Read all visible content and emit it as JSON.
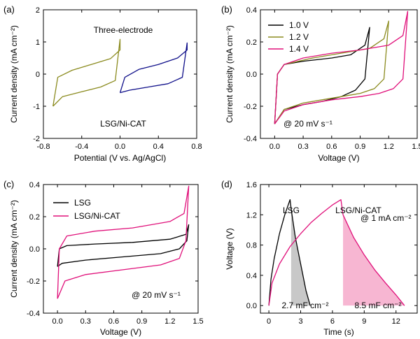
{
  "chart_data": [
    {
      "panel": "(a)",
      "type": "line",
      "xlabel": "Potential (V vs. Ag/AgCl)",
      "ylabel": "Current density  (mA cm⁻²)",
      "xlim": [
        -0.8,
        0.8
      ],
      "ylim": [
        -2,
        2
      ],
      "xticks": [
        -0.8,
        -0.4,
        0.0,
        0.4,
        0.8
      ],
      "xtick_labels": [
        "-0.8",
        "-0.4",
        "0.0",
        "0.4",
        "0.8"
      ],
      "yticks": [
        -2,
        -1,
        0,
        1,
        2
      ],
      "ytick_labels": [
        "-2",
        "-1",
        "0",
        "1",
        "2"
      ],
      "annotations": [
        "Three-electrode",
        "LSG/Ni-CAT"
      ],
      "series": [
        {
          "color": "#8b8b1f",
          "x": [
            -0.7,
            -0.6,
            -0.4,
            -0.2,
            -0.05,
            0.0,
            0.0,
            -0.1,
            -0.3,
            -0.5,
            -0.65,
            -0.7
          ],
          "y": [
            -1.0,
            -0.7,
            -0.55,
            -0.4,
            -0.2,
            1.08,
            0.75,
            0.48,
            0.3,
            0.12,
            -0.1,
            -1.0
          ]
        },
        {
          "color": "#10108a",
          "x": [
            0.0,
            0.1,
            0.3,
            0.5,
            0.65,
            0.7,
            0.7,
            0.6,
            0.4,
            0.2,
            0.05,
            0.0
          ],
          "y": [
            -0.58,
            -0.5,
            -0.4,
            -0.3,
            -0.1,
            0.97,
            0.75,
            0.5,
            0.3,
            0.15,
            -0.1,
            -0.58
          ]
        }
      ]
    },
    {
      "panel": "(b)",
      "type": "line",
      "xlabel": "Voltage (V)",
      "ylabel": "Current density  (mA cm⁻²)",
      "xlim": [
        -0.15,
        1.5
      ],
      "ylim": [
        -0.4,
        0.4
      ],
      "xticks": [
        0.0,
        0.3,
        0.6,
        0.9,
        1.2,
        1.5
      ],
      "xtick_labels": [
        "0.0",
        "0.3",
        "0.6",
        "0.9",
        "1.2",
        "1.5"
      ],
      "yticks": [
        -0.4,
        -0.2,
        0.0,
        0.2,
        0.4
      ],
      "ytick_labels": [
        "-0.4",
        "-0.2",
        "0.0",
        "0.2",
        "0.4"
      ],
      "legend_position": "top-left",
      "annotation": "@ 20 mV s⁻¹",
      "series": [
        {
          "name": "1.0 V",
          "color": "#000000",
          "x": [
            0.0,
            0.1,
            0.3,
            0.5,
            0.7,
            0.85,
            0.95,
            1.0,
            0.95,
            0.8,
            0.6,
            0.3,
            0.1,
            0.03,
            0.0
          ],
          "y": [
            -0.31,
            -0.22,
            -0.19,
            -0.17,
            -0.14,
            -0.1,
            -0.03,
            0.29,
            0.18,
            0.12,
            0.1,
            0.08,
            0.06,
            0.0,
            -0.31
          ]
        },
        {
          "name": "1.2 V",
          "color": "#8b8b1f",
          "x": [
            0.0,
            0.1,
            0.3,
            0.5,
            0.7,
            0.9,
            1.05,
            1.15,
            1.2,
            1.15,
            1.0,
            0.7,
            0.4,
            0.1,
            0.03,
            0.0
          ],
          "y": [
            -0.31,
            -0.22,
            -0.18,
            -0.16,
            -0.14,
            -0.12,
            -0.09,
            -0.03,
            0.33,
            0.22,
            0.16,
            0.13,
            0.1,
            0.06,
            0.0,
            -0.31
          ]
        },
        {
          "name": "1.4 V",
          "color": "#e0107a",
          "x": [
            0.0,
            0.1,
            0.3,
            0.6,
            0.9,
            1.1,
            1.25,
            1.35,
            1.4,
            1.35,
            1.2,
            0.9,
            0.6,
            0.3,
            0.1,
            0.03,
            0.0
          ],
          "y": [
            -0.31,
            -0.23,
            -0.19,
            -0.16,
            -0.14,
            -0.12,
            -0.09,
            -0.03,
            0.39,
            0.24,
            0.18,
            0.15,
            0.13,
            0.1,
            0.06,
            0.0,
            -0.31
          ]
        }
      ]
    },
    {
      "panel": "(c)",
      "type": "line",
      "xlabel": "Voltage (V)",
      "ylabel": "Current density  (mA cm⁻²)",
      "xlim": [
        -0.15,
        1.5
      ],
      "ylim": [
        -0.4,
        0.4
      ],
      "xticks": [
        0.0,
        0.3,
        0.6,
        0.9,
        1.2,
        1.5
      ],
      "xtick_labels": [
        "0.0",
        "0.3",
        "0.6",
        "0.9",
        "1.2",
        "1.5"
      ],
      "yticks": [
        -0.4,
        -0.2,
        0.0,
        0.2,
        0.4
      ],
      "ytick_labels": [
        "-0.4",
        "-0.2",
        "0.0",
        "0.2",
        "0.4"
      ],
      "legend_position": "top-left",
      "annotation": "@ 20 mV s⁻¹",
      "series": [
        {
          "name": "LSG",
          "color": "#000000",
          "x": [
            0.0,
            0.05,
            0.3,
            0.7,
            1.1,
            1.3,
            1.38,
            1.4,
            1.37,
            1.2,
            0.8,
            0.4,
            0.1,
            0.02,
            0.0
          ],
          "y": [
            -0.11,
            -0.09,
            -0.07,
            -0.05,
            -0.03,
            0.0,
            0.05,
            0.15,
            0.09,
            0.06,
            0.04,
            0.03,
            0.02,
            0.0,
            -0.11
          ]
        },
        {
          "name": "LSG/Ni-CAT",
          "color": "#e0107a",
          "x": [
            0.0,
            0.08,
            0.3,
            0.7,
            1.1,
            1.3,
            1.37,
            1.4,
            1.35,
            1.2,
            0.8,
            0.4,
            0.1,
            0.02,
            0.0
          ],
          "y": [
            -0.31,
            -0.2,
            -0.16,
            -0.13,
            -0.1,
            -0.06,
            0.05,
            0.39,
            0.22,
            0.17,
            0.13,
            0.11,
            0.08,
            0.0,
            -0.31
          ]
        }
      ]
    },
    {
      "panel": "(d)",
      "type": "line",
      "xlabel": "Time (s)",
      "ylabel": "Voltage (V)",
      "xlim": [
        -0.8,
        14
      ],
      "ylim": [
        -0.1,
        1.6
      ],
      "xticks": [
        0,
        3,
        6,
        9,
        12
      ],
      "xtick_labels": [
        "0",
        "3",
        "6",
        "9",
        "12"
      ],
      "yticks": [
        0.0,
        0.4,
        0.8,
        1.2,
        1.6
      ],
      "ytick_labels": [
        "0.0",
        "0.4",
        "0.8",
        "1.2",
        "1.6"
      ],
      "annotations": [
        "LSG",
        "LSG/Ni-CAT",
        "@ 1 mA cm⁻²",
        "2.7 mF cm⁻²",
        "8.5 mF cm⁻²"
      ],
      "series": [
        {
          "name": "LSG",
          "color": "#000000",
          "x": [
            0.0,
            0.2,
            0.5,
            1.0,
            1.5,
            2.0,
            2.1,
            2.5,
            3.0,
            3.5,
            3.9
          ],
          "y": [
            0.0,
            0.35,
            0.62,
            0.95,
            1.2,
            1.4,
            1.28,
            0.9,
            0.55,
            0.2,
            0.0
          ]
        },
        {
          "name": "LSG/Ni-CAT",
          "color": "#e0107a",
          "x": [
            0.0,
            0.3,
            1.0,
            2.0,
            3.0,
            4.0,
            5.0,
            6.0,
            6.8,
            7.0,
            8.0,
            9.0,
            10.0,
            11.0,
            12.0,
            12.8
          ],
          "y": [
            0.0,
            0.3,
            0.55,
            0.78,
            0.95,
            1.1,
            1.22,
            1.33,
            1.4,
            1.2,
            0.9,
            0.67,
            0.47,
            0.3,
            0.14,
            0.0
          ]
        }
      ],
      "shaded_regions": [
        {
          "color": "#c8c8c8",
          "x": [
            2.1,
            2.5,
            3.0,
            3.5,
            3.9
          ],
          "y": [
            1.28,
            0.9,
            0.55,
            0.2,
            0.0
          ]
        },
        {
          "color": "#f7b6d2",
          "x": [
            7.0,
            8.0,
            9.0,
            10.0,
            11.0,
            12.0,
            12.8
          ],
          "y": [
            1.2,
            0.9,
            0.67,
            0.47,
            0.3,
            0.14,
            0.0
          ]
        }
      ]
    }
  ]
}
